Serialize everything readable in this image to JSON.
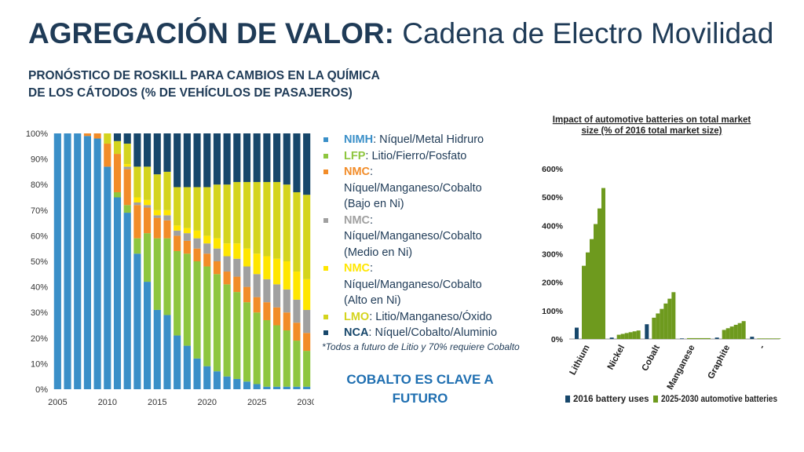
{
  "header": {
    "title_bold": "AGREGACIÓN DE VALOR:",
    "title_rest": "Cadena de Electro Movilidad",
    "subtitle_line1": "PRONÓSTICO DE ROSKILL PARA CAMBIOS EN LA QUÍMICA",
    "subtitle_line2": "DE LOS CÁTODOS (% DE VEHÍCULOS DE PASAJEROS)"
  },
  "legend": [
    {
      "abbr": "NIMH",
      "color": "#3a8fc8",
      "lines": [
        ": Níquel/Metal Hidruro"
      ]
    },
    {
      "abbr": "LFP",
      "color": "#8ec63f",
      "lines": [
        ": Litio/Fierro/Fosfato"
      ]
    },
    {
      "abbr": "NMC",
      "color": "#f28c28",
      "lines": [
        ":",
        "Níquel/Manganeso/Cobalto",
        "(Bajo en Ni)"
      ]
    },
    {
      "abbr": "NMC",
      "color": "#a0a0a0",
      "lines": [
        ":",
        "Níquel/Manganeso/Cobalto",
        "(Medio en Ni)"
      ]
    },
    {
      "abbr": "NMC",
      "color": "#ffe600",
      "lines": [
        ":",
        "Níquel/Manganeso/Cobalto",
        "(Alto en Ni)"
      ]
    },
    {
      "abbr": "LMO",
      "color": "#d4d41e",
      "lines": [
        ": Litio/Manganeso/Óxido"
      ]
    },
    {
      "abbr": "NCA",
      "color": "#17476b",
      "lines": [
        ": Níquel/Cobalto/Aluminio"
      ]
    }
  ],
  "footnote": "*Todos a futuro de Litio y 70% requiere Cobalto",
  "key_message": "COBALTO ES CLAVE A FUTURO",
  "chart_data": [
    {
      "type": "bar",
      "stacked": true,
      "title": "",
      "x": [
        2005,
        2006,
        2007,
        2008,
        2009,
        2010,
        2011,
        2012,
        2013,
        2014,
        2015,
        2016,
        2017,
        2018,
        2019,
        2020,
        2021,
        2022,
        2023,
        2024,
        2025,
        2026,
        2027,
        2028,
        2029,
        2030
      ],
      "x_tick_labels": [
        "2005",
        "2010",
        "2015",
        "2020",
        "2025",
        "2030"
      ],
      "y_tick_labels": [
        "0%",
        "10%",
        "20%",
        "30%",
        "40%",
        "50%",
        "60%",
        "70%",
        "80%",
        "90%",
        "100%"
      ],
      "ylim": [
        0,
        100
      ],
      "series": [
        {
          "color": "#3a8fc8",
          "values": [
            100,
            100,
            100,
            99,
            98,
            87,
            75,
            69,
            53,
            42,
            31,
            29,
            21,
            17,
            12,
            9,
            7,
            5,
            4,
            3,
            2,
            1,
            1,
            1,
            1,
            1
          ]
        },
        {
          "color": "#8ec63f",
          "values": [
            0,
            0,
            0,
            0,
            0,
            0,
            2,
            3,
            6,
            19,
            28,
            30,
            33,
            36,
            38,
            39,
            38,
            36,
            34,
            31,
            28,
            26,
            24,
            22,
            18,
            14
          ]
        },
        {
          "color": "#f28c28",
          "values": [
            0,
            0,
            0,
            1,
            2,
            9,
            15,
            14,
            13,
            10,
            8,
            7,
            6,
            5,
            5,
            5,
            5,
            5,
            6,
            6,
            6,
            7,
            7,
            7,
            7,
            7
          ]
        },
        {
          "color": "#a0a0a0",
          "values": [
            0,
            0,
            0,
            0,
            0,
            0,
            0,
            1,
            1,
            1,
            1,
            2,
            2,
            3,
            4,
            4,
            5,
            6,
            7,
            8,
            9,
            9,
            9,
            9,
            9,
            9
          ]
        },
        {
          "color": "#ffe600",
          "values": [
            0,
            0,
            0,
            0,
            0,
            0,
            0,
            1,
            2,
            2,
            2,
            2,
            2,
            2,
            3,
            3,
            4,
            5,
            6,
            7,
            8,
            9,
            10,
            11,
            11,
            12
          ]
        },
        {
          "color": "#d4d41e",
          "values": [
            0,
            0,
            0,
            0,
            0,
            4,
            5,
            8,
            12,
            13,
            14,
            15,
            15,
            16,
            17,
            19,
            21,
            23,
            24,
            26,
            28,
            29,
            30,
            30,
            31,
            33
          ]
        },
        {
          "color": "#17476b",
          "values": [
            0,
            0,
            0,
            0,
            0,
            0,
            3,
            4,
            13,
            13,
            16,
            15,
            21,
            21,
            21,
            21,
            20,
            20,
            19,
            19,
            19,
            19,
            19,
            20,
            23,
            24
          ]
        }
      ]
    },
    {
      "type": "bar",
      "title": "Impact of automotive batteries on total market size (% of 2016 total market size)",
      "categories": [
        "Lithium",
        "Nickel",
        "Cobalt",
        "Manganese",
        "Graphite",
        "-"
      ],
      "y_tick_labels": [
        "0%",
        "100%",
        "200%",
        "300%",
        "400%",
        "500%",
        "600%"
      ],
      "ylim": [
        0,
        600
      ],
      "series": [
        {
          "name": "2016 battery uses",
          "color": "#17476b",
          "values": [
            40,
            5,
            52,
            2,
            5,
            8
          ]
        },
        {
          "name": "2025-2030 automotive batteries",
          "color": "#6e9a1e",
          "values": [
            [
              258,
              305,
              352,
              405,
              460,
              532
            ],
            [
              15,
              18,
              21,
              24,
              27,
              30
            ],
            [
              75,
              90,
              106,
              125,
              142,
              165
            ],
            [
              3,
              3,
              3,
              3,
              3,
              3
            ],
            [
              32,
              38,
              44,
              50,
              56,
              63
            ],
            [
              2,
              2,
              2,
              2,
              2,
              2
            ]
          ]
        }
      ]
    }
  ]
}
